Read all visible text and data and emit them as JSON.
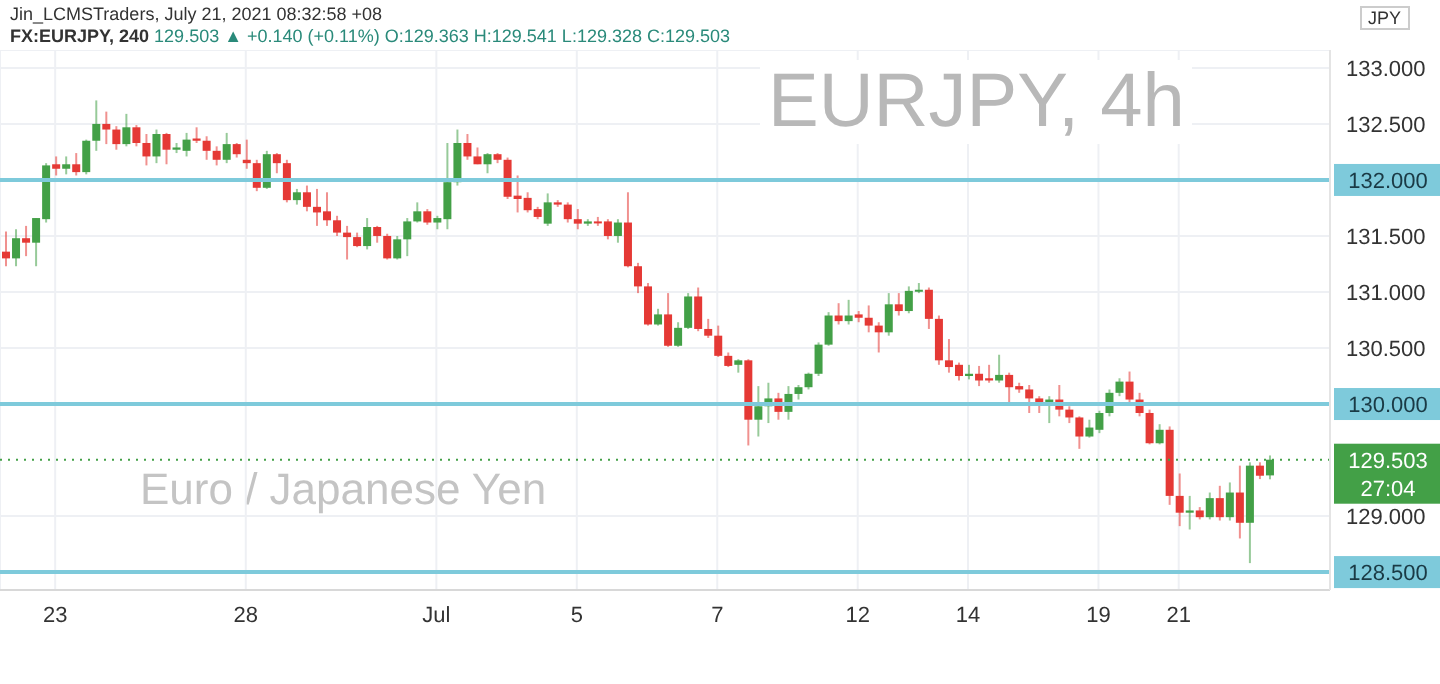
{
  "chart_data": {
    "type": "candlestick",
    "title": "FX:EURJPY, 240",
    "subtitle": "129.503 ▲ +0.140 (+0.11%) O:129.363 H:129.541 L:129.328 C:129.503",
    "ylabel": "JPY",
    "annotations": [
      "Jin_LCMSTraders, July 21, 2021 08:32:58 +08",
      "EURJPY, 4h",
      "Euro / Japanese Yen",
      "27:04"
    ],
    "categories": [
      null,
      null,
      null,
      null,
      null,
      "23",
      null,
      null,
      null,
      null,
      null,
      null,
      null,
      null,
      null,
      null,
      null,
      null,
      null,
      null,
      null,
      null,
      null,
      null,
      "28",
      null,
      null,
      null,
      null,
      null,
      null,
      null,
      null,
      null,
      null,
      null,
      null,
      null,
      null,
      null,
      null,
      null,
      null,
      "Jul",
      null,
      null,
      null,
      null,
      null,
      null,
      null,
      null,
      null,
      null,
      null,
      null,
      null,
      "5",
      null,
      null,
      null,
      null,
      null,
      null,
      null,
      null,
      null,
      null,
      null,
      null,
      null,
      "7",
      null,
      null,
      null,
      null,
      null,
      null,
      null,
      null,
      null,
      null,
      null,
      null,
      null,
      "12",
      null,
      null,
      null,
      null,
      null,
      null,
      null,
      null,
      null,
      null,
      "14",
      null,
      null,
      null,
      null,
      null,
      null,
      null,
      null,
      null,
      null,
      null,
      null,
      "19",
      null,
      null,
      null,
      null,
      null,
      null,
      null,
      "21",
      null,
      null,
      null,
      null,
      null,
      null,
      null,
      null,
      null
    ],
    "ohlc": [
      [
        131.36,
        131.54,
        131.23,
        131.3
      ],
      [
        131.3,
        131.56,
        131.23,
        131.48
      ],
      [
        131.48,
        131.59,
        131.32,
        131.44
      ],
      [
        131.44,
        131.66,
        131.23,
        131.66
      ],
      [
        131.65,
        132.15,
        131.62,
        132.13
      ],
      [
        132.14,
        132.21,
        132.04,
        132.1
      ],
      [
        132.1,
        132.21,
        132.05,
        132.14
      ],
      [
        132.14,
        132.24,
        132.04,
        132.07
      ],
      [
        132.07,
        132.36,
        132.05,
        132.35
      ],
      [
        132.35,
        132.71,
        132.26,
        132.5
      ],
      [
        132.5,
        132.61,
        132.32,
        132.45
      ],
      [
        132.45,
        132.48,
        132.27,
        132.32
      ],
      [
        132.32,
        132.59,
        132.3,
        132.47
      ],
      [
        132.47,
        132.49,
        132.3,
        132.33
      ],
      [
        132.33,
        132.41,
        132.13,
        132.21
      ],
      [
        132.21,
        132.45,
        132.15,
        132.41
      ],
      [
        132.41,
        132.42,
        132.14,
        132.27
      ],
      [
        132.27,
        132.33,
        132.24,
        132.29
      ],
      [
        132.26,
        132.42,
        132.21,
        132.36
      ],
      [
        132.37,
        132.47,
        132.33,
        132.35
      ],
      [
        132.35,
        132.39,
        132.18,
        132.26
      ],
      [
        132.26,
        132.3,
        132.13,
        132.18
      ],
      [
        132.18,
        132.42,
        132.15,
        132.32
      ],
      [
        132.32,
        132.33,
        132.2,
        132.23
      ],
      [
        132.18,
        132.36,
        132.1,
        132.15
      ],
      [
        132.15,
        132.18,
        131.9,
        131.93
      ],
      [
        131.93,
        132.26,
        131.92,
        132.23
      ],
      [
        132.23,
        132.24,
        132.06,
        132.15
      ],
      [
        132.15,
        132.18,
        131.8,
        131.82
      ],
      [
        131.82,
        131.92,
        131.78,
        131.89
      ],
      [
        131.89,
        131.95,
        131.72,
        131.76
      ],
      [
        131.76,
        131.92,
        131.59,
        131.71
      ],
      [
        131.72,
        131.89,
        131.59,
        131.64
      ],
      [
        131.64,
        131.68,
        131.5,
        131.53
      ],
      [
        131.53,
        131.59,
        131.29,
        131.49
      ],
      [
        131.49,
        131.53,
        131.4,
        131.41
      ],
      [
        131.41,
        131.66,
        131.38,
        131.58
      ],
      [
        131.58,
        131.59,
        131.44,
        131.5
      ],
      [
        131.5,
        131.52,
        131.29,
        131.3
      ],
      [
        131.3,
        131.5,
        131.29,
        131.47
      ],
      [
        131.47,
        131.66,
        131.32,
        131.63
      ],
      [
        131.63,
        131.8,
        131.62,
        131.72
      ],
      [
        131.72,
        131.74,
        131.6,
        131.62
      ],
      [
        131.62,
        131.68,
        131.56,
        131.66
      ],
      [
        131.65,
        132.33,
        131.56,
        131.98
      ],
      [
        131.98,
        132.45,
        131.95,
        132.33
      ],
      [
        132.33,
        132.41,
        132.18,
        132.21
      ],
      [
        132.21,
        132.29,
        132.14,
        132.14
      ],
      [
        132.14,
        132.24,
        132.06,
        132.23
      ],
      [
        132.23,
        132.24,
        132.15,
        132.18
      ],
      [
        132.18,
        132.2,
        131.83,
        131.85
      ],
      [
        131.86,
        132.04,
        131.71,
        131.83
      ],
      [
        131.84,
        131.89,
        131.71,
        131.73
      ],
      [
        131.74,
        131.76,
        131.65,
        131.67
      ],
      [
        131.61,
        131.88,
        131.59,
        131.8
      ],
      [
        131.8,
        131.82,
        131.76,
        131.78
      ],
      [
        131.78,
        131.8,
        131.62,
        131.65
      ],
      [
        131.65,
        131.74,
        131.56,
        131.61
      ],
      [
        131.61,
        131.65,
        131.59,
        131.63
      ],
      [
        131.63,
        131.67,
        131.59,
        131.62
      ],
      [
        131.63,
        131.65,
        131.47,
        131.5
      ],
      [
        131.5,
        131.65,
        131.44,
        131.62
      ],
      [
        131.62,
        131.89,
        131.22,
        131.23
      ],
      [
        131.23,
        131.26,
        130.99,
        131.05
      ],
      [
        131.05,
        131.08,
        130.7,
        130.71
      ],
      [
        130.71,
        130.85,
        130.7,
        130.8
      ],
      [
        130.8,
        130.99,
        130.51,
        130.52
      ],
      [
        130.52,
        130.73,
        130.51,
        130.68
      ],
      [
        130.68,
        130.99,
        130.67,
        130.96
      ],
      [
        130.96,
        131.04,
        130.65,
        130.67
      ],
      [
        130.67,
        130.76,
        130.59,
        130.61
      ],
      [
        130.61,
        130.7,
        130.42,
        130.43
      ],
      [
        130.43,
        130.46,
        130.33,
        130.34
      ],
      [
        130.35,
        130.4,
        130.28,
        130.39
      ],
      [
        130.39,
        130.4,
        129.63,
        129.86
      ],
      [
        129.86,
        130.16,
        129.71,
        129.98
      ],
      [
        129.98,
        130.19,
        129.83,
        130.05
      ],
      [
        130.05,
        130.1,
        129.86,
        129.93
      ],
      [
        129.93,
        130.16,
        129.86,
        130.09
      ],
      [
        130.09,
        130.17,
        130.04,
        130.15
      ],
      [
        130.15,
        130.28,
        130.13,
        130.27
      ],
      [
        130.27,
        130.55,
        130.25,
        130.53
      ],
      [
        130.53,
        130.82,
        130.52,
        130.79
      ],
      [
        130.79,
        130.9,
        130.71,
        130.74
      ],
      [
        130.74,
        130.93,
        130.71,
        130.79
      ],
      [
        130.8,
        130.83,
        130.73,
        130.77
      ],
      [
        130.77,
        130.88,
        130.64,
        130.7
      ],
      [
        130.7,
        130.73,
        130.46,
        130.64
      ],
      [
        130.64,
        130.99,
        130.61,
        130.89
      ],
      [
        130.89,
        130.99,
        130.79,
        130.83
      ],
      [
        130.83,
        131.05,
        130.81,
        131.01
      ],
      [
        131.01,
        131.08,
        130.99,
        131.02
      ],
      [
        131.02,
        131.04,
        130.67,
        130.76
      ],
      [
        130.76,
        130.79,
        130.35,
        130.39
      ],
      [
        130.39,
        130.58,
        130.28,
        130.33
      ],
      [
        130.35,
        130.37,
        130.21,
        130.25
      ],
      [
        130.25,
        130.35,
        130.22,
        130.27
      ],
      [
        130.27,
        130.34,
        130.16,
        130.21
      ],
      [
        130.23,
        130.35,
        130.19,
        130.21
      ],
      [
        130.21,
        130.44,
        130.19,
        130.26
      ],
      [
        130.26,
        130.28,
        130.01,
        130.15
      ],
      [
        130.16,
        130.19,
        130.1,
        130.13
      ],
      [
        130.13,
        130.17,
        129.92,
        130.05
      ],
      [
        130.05,
        130.07,
        129.92,
        130.01
      ],
      [
        130.01,
        130.07,
        129.83,
        130.04
      ],
      [
        130.04,
        130.17,
        129.89,
        129.95
      ],
      [
        129.95,
        129.98,
        129.83,
        129.88
      ],
      [
        129.88,
        129.89,
        129.6,
        129.71
      ],
      [
        129.71,
        129.86,
        129.7,
        129.79
      ],
      [
        129.77,
        129.94,
        129.74,
        129.92
      ],
      [
        129.92,
        130.13,
        129.89,
        130.1
      ],
      [
        130.1,
        130.23,
        130.07,
        130.2
      ],
      [
        130.2,
        130.29,
        130.01,
        130.04
      ],
      [
        130.04,
        130.1,
        129.89,
        129.92
      ],
      [
        129.92,
        129.95,
        129.64,
        129.65
      ],
      [
        129.65,
        129.82,
        129.64,
        129.77
      ],
      [
        129.77,
        129.8,
        129.1,
        129.18
      ],
      [
        129.18,
        129.38,
        128.91,
        129.03
      ],
      [
        129.03,
        129.18,
        128.88,
        129.05
      ],
      [
        129.05,
        129.08,
        128.97,
        128.99
      ],
      [
        128.99,
        129.21,
        128.97,
        129.16
      ],
      [
        129.16,
        129.27,
        128.96,
        128.99
      ],
      [
        128.99,
        129.3,
        128.96,
        129.21
      ],
      [
        129.21,
        129.45,
        128.8,
        128.94
      ],
      [
        128.94,
        129.48,
        128.58,
        129.45
      ],
      [
        129.45,
        129.48,
        129.33,
        129.36
      ],
      [
        129.363,
        129.541,
        129.328,
        129.503
      ]
    ],
    "colors": [
      "#e53935",
      "#43a047",
      "#e53935",
      "#43a047",
      "#43a047",
      "#e53935",
      "#43a047",
      "#e53935",
      "#43a047",
      "#43a047",
      "#e53935",
      "#e53935",
      "#43a047",
      "#e53935",
      "#e53935",
      "#43a047",
      "#e53935",
      "#43a047",
      "#43a047",
      "#e53935",
      "#e53935",
      "#e53935",
      "#43a047",
      "#e53935",
      "#e53935",
      "#e53935",
      "#43a047",
      "#e53935",
      "#e53935",
      "#43a047",
      "#e53935",
      "#e53935",
      "#e53935",
      "#e53935",
      "#e53935",
      "#e53935",
      "#43a047",
      "#e53935",
      "#e53935",
      "#43a047",
      "#43a047",
      "#43a047",
      "#e53935",
      "#43a047",
      "#43a047",
      "#43a047",
      "#e53935",
      "#e53935",
      "#43a047",
      "#e53935",
      "#e53935",
      "#e53935",
      "#e53935",
      "#e53935",
      "#43a047",
      "#e53935",
      "#e53935",
      "#e53935",
      "#43a047",
      "#e53935",
      "#e53935",
      "#43a047",
      "#e53935",
      "#e53935",
      "#e53935",
      "#43a047",
      "#e53935",
      "#43a047",
      "#43a047",
      "#e53935",
      "#e53935",
      "#e53935",
      "#e53935",
      "#43a047",
      "#e53935",
      "#43a047",
      "#43a047",
      "#e53935",
      "#43a047",
      "#43a047",
      "#43a047",
      "#43a047",
      "#43a047",
      "#e53935",
      "#43a047",
      "#e53935",
      "#e53935",
      "#e53935",
      "#43a047",
      "#e53935",
      "#43a047",
      "#43a047",
      "#e53935",
      "#e53935",
      "#e53935",
      "#e53935",
      "#43a047",
      "#e53935",
      "#e53935",
      "#43a047",
      "#e53935",
      "#e53935",
      "#e53935",
      "#e53935",
      "#43a047",
      "#e53935",
      "#e53935",
      "#e53935",
      "#43a047",
      "#43a047",
      "#43a047",
      "#43a047",
      "#e53935",
      "#e53935",
      "#e53935",
      "#43a047",
      "#e53935",
      "#e53935",
      "#43a047",
      "#e53935",
      "#43a047",
      "#e53935",
      "#43a047",
      "#e53935",
      "#43a047",
      "#e53935",
      "#43a047"
    ],
    "ylim": [
      128.34,
      133.16
    ],
    "yticks": [
      {
        "value": 133,
        "label": "133.000"
      },
      {
        "value": 132.5,
        "label": "132.500"
      },
      {
        "value": 131.5,
        "label": "131.500"
      },
      {
        "value": 131,
        "label": "131.000"
      },
      {
        "value": 130.5,
        "label": "130.500"
      },
      {
        "value": 129,
        "label": "129.000"
      }
    ],
    "ref_lines": [
      {
        "axis": "y",
        "value": 132,
        "label": "132.000",
        "color": "#7ecadb",
        "line_style": "solid"
      },
      {
        "axis": "y",
        "value": 130,
        "label": "130.000",
        "color": "#7ecadb",
        "line_style": "solid"
      },
      {
        "axis": "y",
        "value": 128.5,
        "label": "128.500",
        "color": "#7ecadb",
        "line_style": "solid"
      },
      {
        "axis": "y",
        "value": 129.503,
        "label": "129.503",
        "color": "#43a047",
        "line_style": "dotted"
      }
    ],
    "grid": true,
    "legend": false
  }
}
